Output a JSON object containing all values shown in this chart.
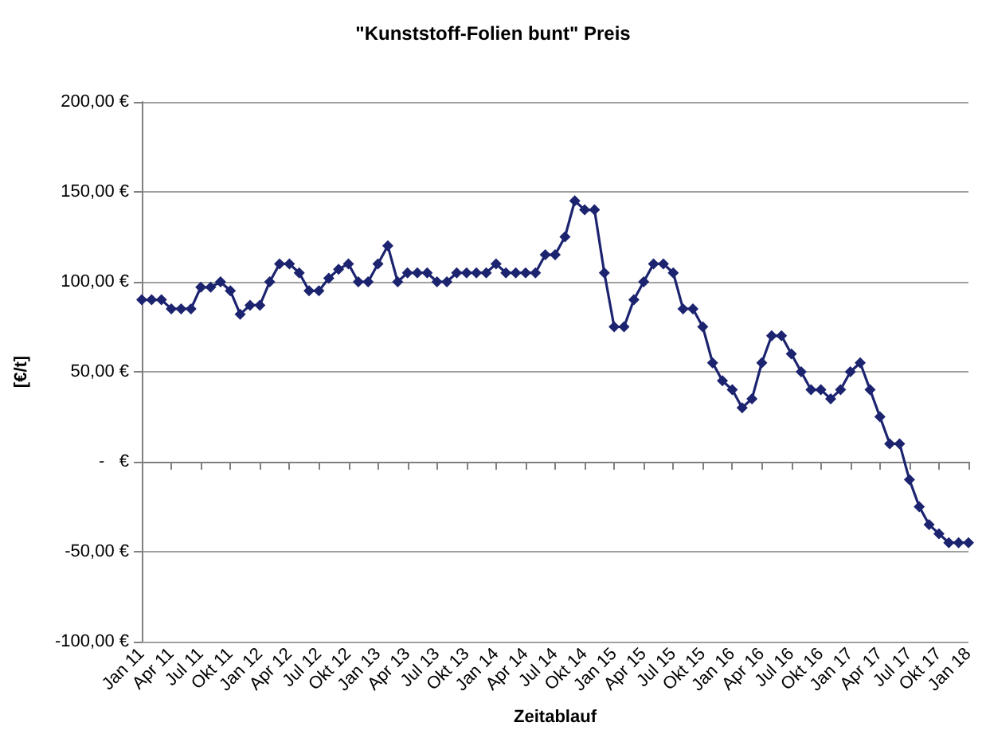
{
  "chart_data": {
    "type": "line",
    "title": "\"Kunststoff-Folien bunt\" Preis",
    "xlabel": "Zeitablauf",
    "ylabel": "[€/t]",
    "categories": [
      "Jan 11",
      null,
      null,
      "Apr 11",
      null,
      null,
      "Jul 11",
      null,
      null,
      "Okt 11",
      null,
      null,
      "Jan 12",
      null,
      null,
      "Apr 12",
      null,
      null,
      "Jul 12",
      null,
      null,
      "Okt 12",
      null,
      null,
      "Jan 13",
      null,
      null,
      "Apr 13",
      null,
      null,
      "Jul 13",
      null,
      null,
      "Okt 13",
      null,
      null,
      "Jan 14",
      null,
      null,
      "Apr 14",
      null,
      null,
      "Jul 14",
      null,
      null,
      "Okt 14",
      null,
      null,
      "Jan 15",
      null,
      null,
      "Apr 15",
      null,
      null,
      "Jul 15",
      null,
      null,
      "Okt 15",
      null,
      null,
      "Jan 16",
      null,
      null,
      "Apr 16",
      null,
      null,
      "Jul 16",
      null,
      null,
      "Okt 16",
      null,
      null,
      "Jan 17",
      null,
      null,
      "Apr 17",
      null,
      null,
      "Jul 17",
      null,
      null,
      "Okt 17",
      null,
      null,
      "Jan 18"
    ],
    "series": [
      {
        "color": "#1c2470",
        "values": [
          90,
          90,
          90,
          85,
          85,
          85,
          97,
          97,
          100,
          95,
          82,
          87,
          87,
          100,
          110,
          110,
          105,
          95,
          95,
          102,
          107,
          110,
          100,
          100,
          110,
          120,
          100,
          105,
          105,
          105,
          100,
          100,
          105,
          105,
          105,
          105,
          110,
          105,
          105,
          105,
          105,
          115,
          115,
          125,
          145,
          140,
          140,
          105,
          75,
          75,
          90,
          100,
          110,
          110,
          105,
          85,
          85,
          75,
          55,
          45,
          40,
          30,
          35,
          55,
          70,
          70,
          60,
          50,
          40,
          40,
          35,
          40,
          50,
          55,
          40,
          25,
          10,
          10,
          -10,
          -25,
          -35,
          -40,
          -45,
          -45,
          -45
        ]
      }
    ],
    "ylim": [
      -100,
      200
    ],
    "yticks": [
      {
        "value": -100,
        "label": "-100,00 €"
      },
      {
        "value": -50,
        "label": "-50,00 €"
      },
      {
        "value": 0,
        "label": "-   €"
      },
      {
        "value": 50,
        "label": "50,00 €"
      },
      {
        "value": 100,
        "label": "100,00 €"
      },
      {
        "value": 150,
        "label": "150,00 €"
      },
      {
        "value": 200,
        "label": "200,00 €"
      }
    ],
    "grid": "y",
    "marker": "diamond",
    "line_style": "solid"
  }
}
